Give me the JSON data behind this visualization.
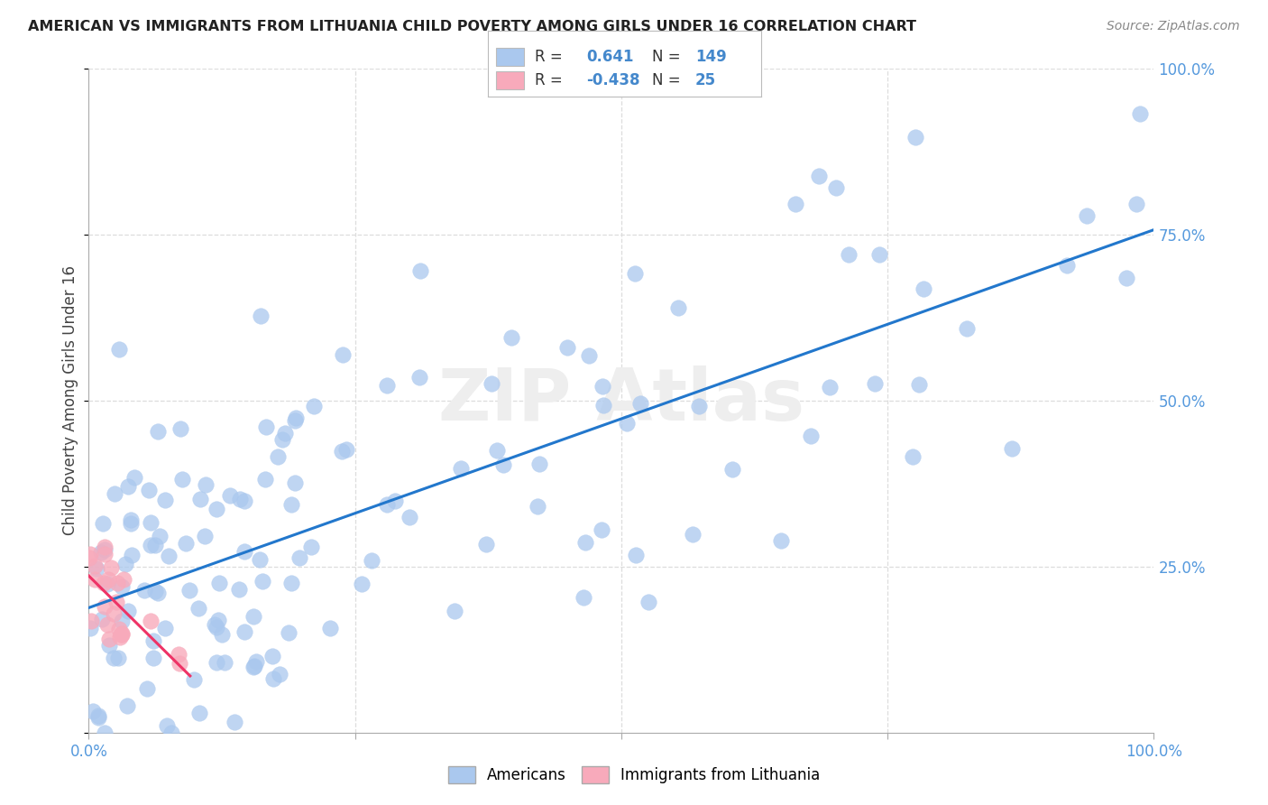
{
  "title": "AMERICAN VS IMMIGRANTS FROM LITHUANIA CHILD POVERTY AMONG GIRLS UNDER 16 CORRELATION CHART",
  "source": "Source: ZipAtlas.com",
  "ylabel": "Child Poverty Among Girls Under 16",
  "legend_r_american": "0.641",
  "legend_n_american": "149",
  "legend_r_lithuania": "-0.438",
  "legend_n_lithuania": "25",
  "american_color": "#aac8ee",
  "american_edge_color": "#aac8ee",
  "american_line_color": "#2277cc",
  "lithuania_color": "#f8aabb",
  "lithuania_edge_color": "#f8aabb",
  "lithuania_line_color": "#ee3366",
  "background_color": "#ffffff",
  "grid_color": "#dddddd",
  "tick_label_color": "#5599dd",
  "title_color": "#222222",
  "ylabel_color": "#444444",
  "source_color": "#888888",
  "watermark_color": "#eeeeee",
  "legend_text_color": "#333333",
  "legend_value_color": "#4488cc"
}
